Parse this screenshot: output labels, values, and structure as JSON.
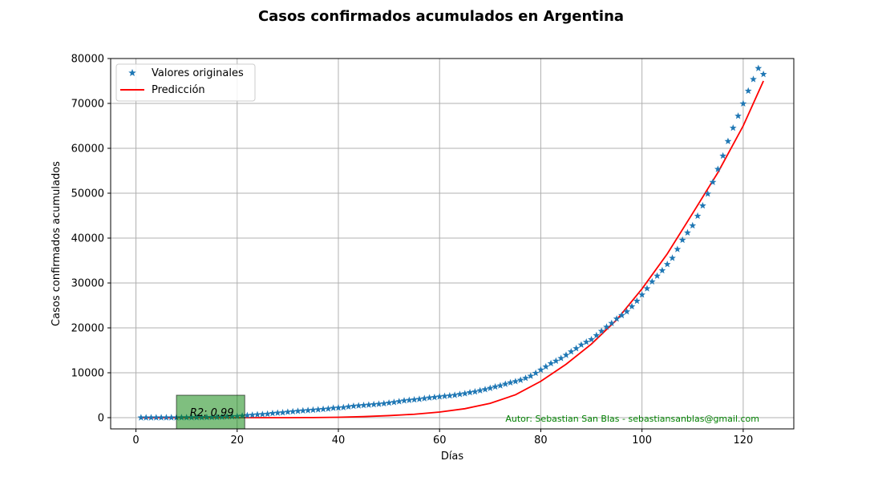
{
  "chart_data": {
    "type": "scatter",
    "title": "Casos confirmados acumulados en Argentina",
    "xlabel": "Días",
    "ylabel": "Casos confirmados acumulados",
    "xlim": [
      -5,
      130
    ],
    "ylim": [
      -2500,
      80000
    ],
    "xticks": [
      0,
      20,
      40,
      60,
      80,
      100,
      120
    ],
    "yticks": [
      0,
      10000,
      20000,
      30000,
      40000,
      50000,
      60000,
      70000,
      80000
    ],
    "grid": true,
    "legend": {
      "placement": "top-left",
      "entries": [
        "Valores originales",
        "Predicción"
      ]
    },
    "series": [
      {
        "name": "Valores originales",
        "kind": "scatter",
        "marker": "star",
        "color": "#1f77b4",
        "x": [
          1,
          2,
          3,
          4,
          5,
          6,
          7,
          8,
          9,
          10,
          11,
          12,
          13,
          14,
          15,
          16,
          17,
          18,
          19,
          20,
          21,
          22,
          23,
          24,
          25,
          26,
          27,
          28,
          29,
          30,
          31,
          32,
          33,
          34,
          35,
          36,
          37,
          38,
          39,
          40,
          41,
          42,
          43,
          44,
          45,
          46,
          47,
          48,
          49,
          50,
          51,
          52,
          53,
          54,
          55,
          56,
          57,
          58,
          59,
          60,
          61,
          62,
          63,
          64,
          65,
          66,
          67,
          68,
          69,
          70,
          71,
          72,
          73,
          74,
          75,
          76,
          77,
          78,
          79,
          80,
          81,
          82,
          83,
          84,
          85,
          86,
          87,
          88,
          89,
          90,
          91,
          92,
          93,
          94,
          95,
          96,
          97,
          98,
          99,
          100,
          101,
          102,
          103,
          104,
          105,
          106,
          107,
          108,
          109,
          110,
          111,
          112,
          113,
          114,
          115,
          116,
          117,
          118,
          119,
          120,
          121,
          122,
          123,
          124
        ],
        "y": [
          1,
          1,
          2,
          8,
          12,
          17,
          19,
          21,
          31,
          34,
          45,
          56,
          65,
          79,
          97,
          128,
          158,
          225,
          266,
          301,
          387,
          502,
          589,
          690,
          745,
          820,
          966,
          1054,
          1133,
          1265,
          1353,
          1451,
          1554,
          1628,
          1715,
          1795,
          1894,
          1975,
          2142,
          2208,
          2277,
          2443,
          2571,
          2669,
          2758,
          2839,
          2941,
          3031,
          3144,
          3288,
          3435,
          3607,
          3780,
          3892,
          4003,
          4127,
          4285,
          4428,
          4532,
          4681,
          4783,
          4887,
          5020,
          5208,
          5371,
          5611,
          5776,
          6034,
          6278,
          6563,
          6879,
          7134,
          7479,
          7805,
          8068,
          8371,
          8809,
          9283,
          9931,
          10649,
          11353,
          12076,
          12628,
          13228,
          13933,
          14702,
          15419,
          16214,
          16851,
          17415,
          18319,
          19268,
          20197,
          21037,
          22020,
          22794,
          23620,
          24761,
          25987,
          27373,
          28764,
          30295,
          31577,
          32785,
          34159,
          35552,
          37510,
          39570,
          41204,
          42785,
          44931,
          47216,
          49851,
          52457,
          55343,
          58324,
          61563,
          64530,
          67197,
          69941,
          72786,
          75376,
          77815,
          76500
        ]
      },
      {
        "name": "Predicción",
        "kind": "line",
        "color": "#ff0000",
        "x": [
          1,
          5,
          10,
          15,
          20,
          25,
          30,
          35,
          40,
          45,
          50,
          55,
          60,
          65,
          70,
          75,
          80,
          85,
          90,
          95,
          100,
          105,
          110,
          115,
          120,
          124
        ],
        "y": [
          0,
          0,
          0,
          0,
          0,
          0,
          5,
          25,
          90,
          230,
          460,
          760,
          1250,
          2000,
          3200,
          5100,
          8100,
          11900,
          16400,
          21800,
          28700,
          36500,
          45500,
          54600,
          65000,
          75000
        ]
      }
    ],
    "annotations": [
      {
        "text": "R2: 0.99",
        "x": 15,
        "y": 1200,
        "box_color": "#008000"
      },
      {
        "text": "Autor: Sebastian San Blas - sebastiansanblas@gmail.com",
        "color": "#008000",
        "placement": "bottom-right"
      }
    ]
  }
}
